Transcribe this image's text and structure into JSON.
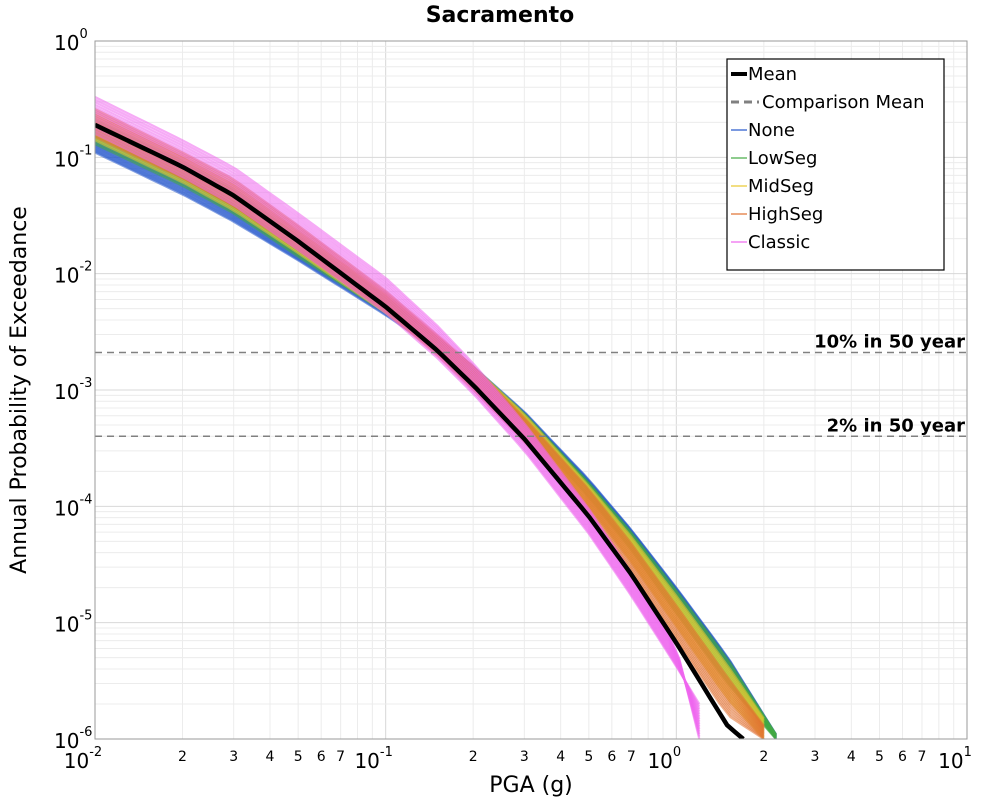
{
  "chart_data": {
    "type": "line",
    "title": "Sacramento",
    "xlabel": "PGA (g)",
    "ylabel": "Annual Probability of Exceedance",
    "x_scale": "log",
    "y_scale": "log",
    "xlim": [
      0.01,
      10
    ],
    "ylim": [
      1e-06,
      1
    ],
    "grid": true,
    "legend_position": "top-right",
    "x_major_ticks": [
      {
        "value": 0.01,
        "base": "10",
        "exp": "-2"
      },
      {
        "value": 0.1,
        "base": "10",
        "exp": "-1"
      },
      {
        "value": 1,
        "base": "10",
        "exp": "0"
      },
      {
        "value": 10,
        "base": "10",
        "exp": "1"
      }
    ],
    "x_minor_tick_labels": [
      "2",
      "3",
      "4",
      "5",
      "6",
      "7"
    ],
    "y_major_ticks": [
      {
        "value": 1,
        "base": "10",
        "exp": "0"
      },
      {
        "value": 0.1,
        "base": "10",
        "exp": "-1"
      },
      {
        "value": 0.01,
        "base": "10",
        "exp": "-2"
      },
      {
        "value": 0.001,
        "base": "10",
        "exp": "-3"
      },
      {
        "value": 0.0001,
        "base": "10",
        "exp": "-4"
      },
      {
        "value": 1e-05,
        "base": "10",
        "exp": "-5"
      },
      {
        "value": 1e-06,
        "base": "10",
        "exp": "-6"
      }
    ],
    "series": [
      {
        "name": "Mean",
        "color": "#000000",
        "style": "solid-thick",
        "x": [
          0.01,
          0.02,
          0.03,
          0.05,
          0.1,
          0.15,
          0.2,
          0.3,
          0.5,
          0.7,
          1.0,
          1.5,
          1.7
        ],
        "y": [
          0.19,
          0.083,
          0.047,
          0.019,
          0.0052,
          0.0022,
          0.0011,
          0.00038,
          8.2e-05,
          2.6e-05,
          6.7e-06,
          1.3e-06,
          1e-06
        ]
      },
      {
        "name": "None",
        "color": "#2255cc",
        "style": "band",
        "x": [
          0.01,
          0.02,
          0.03,
          0.05,
          0.1,
          0.15,
          0.2,
          0.3,
          0.5,
          0.7,
          1.0,
          1.5,
          2.2
        ],
        "y_low": [
          0.11,
          0.048,
          0.028,
          0.013,
          0.0044,
          0.0022,
          0.0013,
          0.00055,
          0.00014,
          5.4e-05,
          1.7e-05,
          4.3e-06,
          1e-06
        ],
        "y_high": [
          0.15,
          0.068,
          0.039,
          0.017,
          0.0058,
          0.0028,
          0.0016,
          0.00065,
          0.00017,
          6.3e-05,
          2e-05,
          5.1e-06,
          1.1e-06
        ]
      },
      {
        "name": "LowSeg",
        "color": "#44aa44",
        "style": "band",
        "x": [
          0.01,
          0.02,
          0.03,
          0.05,
          0.1,
          0.15,
          0.2,
          0.3,
          0.5,
          0.7,
          1.0,
          1.5,
          2.2
        ],
        "y_low": [
          0.13,
          0.057,
          0.033,
          0.014,
          0.0046,
          0.0022,
          0.0012,
          0.00048,
          0.00012,
          4.2e-05,
          1.2e-05,
          3e-06,
          1e-06
        ],
        "y_high": [
          0.21,
          0.093,
          0.053,
          0.021,
          0.0063,
          0.0028,
          0.0016,
          0.00063,
          0.00016,
          6e-05,
          1.9e-05,
          4.9e-06,
          1.1e-06
        ]
      },
      {
        "name": "MidSeg",
        "color": "#e8c830",
        "style": "band",
        "x": [
          0.01,
          0.02,
          0.03,
          0.05,
          0.1,
          0.15,
          0.2,
          0.3,
          0.5,
          0.7,
          1.0,
          1.5,
          2.0
        ],
        "y_low": [
          0.14,
          0.061,
          0.035,
          0.015,
          0.0046,
          0.0021,
          0.0011,
          0.00042,
          0.0001,
          3.3e-05,
          9.3e-06,
          2.2e-06,
          1e-06
        ],
        "y_high": [
          0.23,
          0.1,
          0.058,
          0.023,
          0.0066,
          0.0029,
          0.0016,
          0.00062,
          0.00015,
          5.5e-05,
          1.7e-05,
          4.3e-06,
          1.5e-06
        ]
      },
      {
        "name": "HighSeg",
        "color": "#e07030",
        "style": "band",
        "x": [
          0.01,
          0.02,
          0.03,
          0.05,
          0.1,
          0.15,
          0.2,
          0.3,
          0.5,
          0.7,
          1.0,
          1.5,
          2.0
        ],
        "y_low": [
          0.15,
          0.066,
          0.038,
          0.016,
          0.0047,
          0.002,
          0.001,
          0.00036,
          8.2e-05,
          2.6e-05,
          7.1e-06,
          1.6e-06,
          1e-06
        ],
        "y_high": [
          0.26,
          0.11,
          0.065,
          0.026,
          0.0071,
          0.003,
          0.0016,
          0.00058,
          0.00014,
          4.8e-05,
          1.4e-05,
          3.4e-06,
          1.3e-06
        ]
      },
      {
        "name": "Classic",
        "color": "#ee66ee",
        "style": "band",
        "x": [
          0.01,
          0.02,
          0.03,
          0.05,
          0.1,
          0.15,
          0.2,
          0.3,
          0.5,
          0.7,
          1.0,
          1.2
        ],
        "y_low": [
          0.16,
          0.068,
          0.039,
          0.016,
          0.0046,
          0.0019,
          0.00093,
          0.0003,
          5.8e-05,
          1.7e-05,
          4.2e-06,
          2e-06
        ],
        "y_high": [
          0.33,
          0.14,
          0.082,
          0.033,
          0.0092,
          0.0036,
          0.0017,
          0.00052,
          9.5e-05,
          2.7e-05,
          6.2e-06,
          1e-06
        ]
      }
    ],
    "legend": [
      {
        "label": "Mean",
        "color": "#000000",
        "style": "solid-thick"
      },
      {
        "label": "Comparison Mean",
        "color": "#808080",
        "style": "dashed"
      },
      {
        "label": "None",
        "color": "#2255cc",
        "style": "solid"
      },
      {
        "label": "LowSeg",
        "color": "#44aa44",
        "style": "solid"
      },
      {
        "label": "MidSeg",
        "color": "#e8c830",
        "style": "solid"
      },
      {
        "label": "HighSeg",
        "color": "#e07030",
        "style": "solid"
      },
      {
        "label": "Classic",
        "color": "#ee66ee",
        "style": "solid"
      }
    ],
    "reference_lines": [
      {
        "label": "10% in 50 year",
        "y": 0.0021
      },
      {
        "label": "2% in 50 year",
        "y": 0.0004
      }
    ]
  }
}
